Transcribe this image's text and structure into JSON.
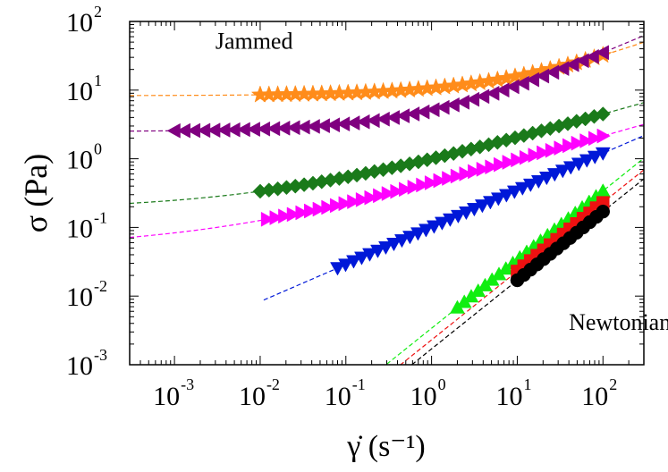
{
  "chart_data": {
    "type": "scatter",
    "xscale": "log",
    "yscale": "log",
    "xlim": [
      0.0003,
      300
    ],
    "ylim": [
      0.001,
      100
    ],
    "xlabel": "γ̇ (s⁻¹)",
    "ylabel": "σ (Pa)",
    "x_ticks": [
      {
        "value": 0.001,
        "base": "10",
        "exp": "-3"
      },
      {
        "value": 0.01,
        "base": "10",
        "exp": "-2"
      },
      {
        "value": 0.1,
        "base": "10",
        "exp": "-1"
      },
      {
        "value": 1,
        "base": "10",
        "exp": "0"
      },
      {
        "value": 10,
        "base": "10",
        "exp": "1"
      },
      {
        "value": 100,
        "base": "10",
        "exp": "2"
      }
    ],
    "y_ticks": [
      {
        "value": 0.001,
        "base": "10",
        "exp": "-3"
      },
      {
        "value": 0.01,
        "base": "10",
        "exp": "-2"
      },
      {
        "value": 0.1,
        "base": "10",
        "exp": "-1"
      },
      {
        "value": 1,
        "base": "10",
        "exp": "0"
      },
      {
        "value": 10,
        "base": "10",
        "exp": "1"
      },
      {
        "value": 100,
        "base": "10",
        "exp": "2"
      }
    ],
    "annotations": [
      {
        "text": "Jammed",
        "x": 0.003,
        "y": 40
      },
      {
        "text": "Newtonian",
        "x": 40,
        "y": 0.0032
      }
    ],
    "series": [
      {
        "name": "orange-stars",
        "marker": "star",
        "color": "#ff8c1a",
        "fit": {
          "sigma_y": 8.3,
          "k": 2.4,
          "n": 0.5
        },
        "x_range": [
          0.01,
          100
        ],
        "points": 40,
        "fit_range": [
          0.0003,
          300
        ]
      },
      {
        "name": "purple-left-triangles",
        "marker": "triangle-left",
        "color": "#800080",
        "fit": {
          "sigma_y": 2.5,
          "k": 2.6,
          "n": 0.55
        },
        "x_range": [
          0.001,
          100
        ],
        "points": 44,
        "fit_range": [
          0.0003,
          300
        ]
      },
      {
        "name": "green-diamonds",
        "marker": "diamond",
        "color": "#1a7a1a",
        "fit": {
          "sigma_y": 0.18,
          "k": 0.82,
          "n": 0.36
        },
        "x_range": [
          0.01,
          100
        ],
        "points": 40,
        "fit_range": [
          0.0003,
          300
        ]
      },
      {
        "name": "magenta-right-triangles",
        "marker": "triangle-right",
        "color": "#ff00ff",
        "fit": {
          "sigma_y": 0.05,
          "k": 0.4,
          "n": 0.36
        },
        "x_range": [
          0.012,
          100
        ],
        "points": 40,
        "fit_range": [
          0.0003,
          300
        ]
      },
      {
        "name": "blue-down-triangles",
        "marker": "triangle-down",
        "color": "#0018d8",
        "fit": {
          "sigma_y": 0,
          "k": 0.1,
          "n": 0.54
        },
        "x_range": [
          0.08,
          100
        ],
        "points": 34,
        "fit_range": [
          0.011,
          300
        ]
      },
      {
        "name": "green-up-triangles",
        "marker": "triangle-up",
        "color": "#11ee11",
        "fit": {
          "sigma_y": 0,
          "k": 0.0034,
          "n": 1.0
        },
        "x_range": [
          2,
          100
        ],
        "points": 22,
        "fit_range": [
          0.3,
          300
        ]
      },
      {
        "name": "red-squares",
        "marker": "square",
        "color": "#ee1111",
        "fit": {
          "sigma_y": 0,
          "k": 0.0023,
          "n": 1.0
        },
        "x_range": [
          10,
          100
        ],
        "points": 14,
        "fit_range": [
          0.43,
          300
        ]
      },
      {
        "name": "black-circles",
        "marker": "circle",
        "color": "#000000",
        "fit": {
          "sigma_y": 0,
          "k": 0.0017,
          "n": 1.0
        },
        "x_range": [
          10,
          100
        ],
        "points": 14,
        "fit_range": [
          0.59,
          300
        ]
      }
    ]
  }
}
